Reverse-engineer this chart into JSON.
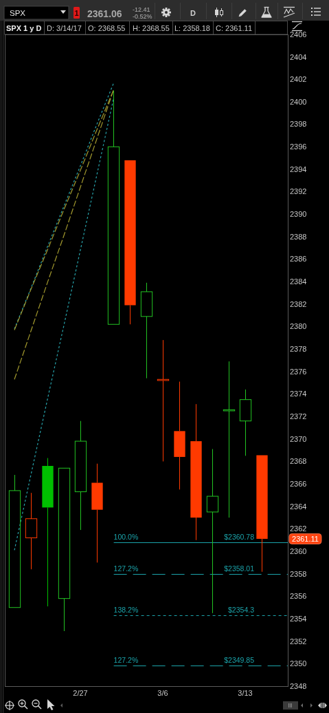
{
  "chart_data": {
    "type": "candlestick",
    "title": "SPX 1 y D",
    "categories": [
      null,
      null,
      null,
      null,
      "2/27",
      null,
      null,
      null,
      null,
      "3/6",
      null,
      null,
      null,
      null,
      "3/13",
      null
    ],
    "ohlc": [
      [
        2355.0,
        2366.8,
        2355.0,
        2365.4
      ],
      [
        2361.2,
        2365.2,
        2358.4,
        2362.9
      ],
      [
        2367.6,
        2368.3,
        2355.1,
        2363.9
      ],
      [
        2355.8,
        2367.4,
        2352.9,
        2367.4
      ],
      [
        2365.3,
        2371.6,
        2361.9,
        2369.8
      ],
      [
        2366.1,
        2367.8,
        2359.0,
        2363.7
      ],
      [
        2380.2,
        2401.0,
        2380.2,
        2396.0
      ],
      [
        2394.8,
        2394.8,
        2380.2,
        2381.9
      ],
      [
        2380.9,
        2383.9,
        2375.4,
        2383.1
      ],
      [
        2375.2,
        2378.8,
        2368.0,
        2375.3
      ],
      [
        2370.7,
        2375.1,
        2365.5,
        2368.4
      ],
      [
        2369.8,
        2373.1,
        2361.0,
        2363.0
      ],
      [
        2363.5,
        2369.1,
        2354.5,
        2364.9
      ],
      [
        2372.5,
        2376.9,
        2363.0,
        2372.6
      ],
      [
        2371.6,
        2374.4,
        2368.5,
        2373.5
      ],
      [
        2368.55,
        2368.55,
        2358.18,
        2361.11
      ]
    ],
    "colors": [
      "#22c322",
      "#ff3a00",
      "#00c000",
      "#22c322",
      "#22c322",
      "#ff3a00",
      "#22c322",
      "#ff3a00",
      "#22c322",
      "#ff3a00",
      "#ff3a00",
      "#ff3a00",
      "#22c322",
      "#22c322",
      "#22c322",
      "#ff3a00"
    ],
    "series": [
      {
        "type": "line",
        "color": "#27a3ab",
        "line_style": "dotted",
        "values": [
          2379.8,
          2383.4,
          2387.1,
          2390.7,
          2394.3,
          2398.0,
          2401.6,
          null,
          null,
          null,
          null,
          null,
          null,
          null,
          null,
          null
        ]
      },
      {
        "type": "line",
        "color": "#a39a2e",
        "line_style": "dashed",
        "values": [
          2379.7,
          2383.3,
          2386.8,
          2390.4,
          2393.9,
          2397.5,
          2401.0,
          null,
          null,
          null,
          null,
          null,
          null,
          null,
          null,
          null
        ]
      },
      {
        "type": "line",
        "color": "#a39a2e",
        "line_style": "dashed",
        "values": [
          2375.3,
          2379.6,
          2383.9,
          2388.1,
          2392.4,
          2396.7,
          2401.0,
          null,
          null,
          null,
          null,
          null,
          null,
          null,
          null,
          null
        ]
      },
      {
        "type": "line",
        "color": "#27a3ab",
        "line_style": "dotted",
        "values": [
          2360.1,
          2366.8,
          2373.5,
          2380.1,
          2386.8,
          2393.5,
          2400.2,
          null,
          null,
          null,
          null,
          null,
          null,
          null,
          null,
          null
        ]
      }
    ],
    "ylim": [
      2348,
      2406
    ],
    "yticks": [
      2348,
      2350,
      2352,
      2354,
      2356,
      2358,
      2360,
      2362,
      2364,
      2366,
      2368,
      2370,
      2372,
      2374,
      2376,
      2378,
      2380,
      2382,
      2384,
      2386,
      2388,
      2390,
      2392,
      2394,
      2396,
      2398,
      2400,
      2402,
      2404,
      2406
    ],
    "ref_lines": [
      {
        "axis": "y",
        "value": 2360.78,
        "label": "$2360.78",
        "color": "#1ba3aa",
        "line_style": "solid"
      },
      {
        "axis": "y",
        "value": 2358.01,
        "label": "$2358.01",
        "color": "#1ba3aa",
        "line_style": "dashed"
      },
      {
        "axis": "y",
        "value": 2354.3,
        "label": "$2354.3",
        "color": "#1ba3aa",
        "line_style": "dotted"
      },
      {
        "axis": "y",
        "value": 2349.85,
        "label": "$2349.85",
        "color": "#1ba3aa",
        "line_style": "dashed"
      }
    ],
    "annotations": [
      "SPX",
      "1",
      "2361.06",
      "-12.41",
      "-0.52%",
      "D",
      "D: 3/14/17",
      "O: 2368.55",
      "H: 2368.55",
      "L: 2358.18",
      "C: 2361.11",
      "2361.11",
      {
        "text": "100.0%",
        "y": 2360.78
      },
      {
        "text": "127.2%",
        "y": 2358.01
      },
      {
        "text": "138.2%",
        "y": 2354.3
      },
      {
        "text": "127.2%",
        "y": 2349.85
      }
    ]
  }
}
